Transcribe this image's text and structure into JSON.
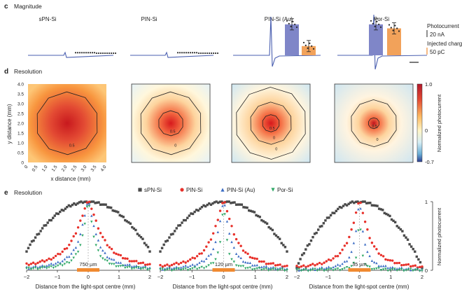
{
  "figure": {
    "panels": {
      "c": {
        "letter": "c",
        "title": "Magnitude"
      },
      "d": {
        "letter": "d",
        "title": "Resolution"
      },
      "e": {
        "letter": "e",
        "title": "Resolution"
      }
    },
    "device_names": [
      "sPN-Si",
      "PIN-Si",
      "PIN-Si (Au)",
      "Por-Si"
    ],
    "colors": {
      "trace": "#4a5fb0",
      "photocurrent_bar": "#7f86c8",
      "charge_bar": "#f2a25a",
      "spn": "#4a4a4a",
      "pin": "#e8302a",
      "pinau": "#3b6cc4",
      "por": "#2fa866",
      "scalebar_orange": "#f08a30"
    },
    "scale_photocurrent": {
      "title": "Photocurrent",
      "value": "20 nA"
    },
    "scale_charge": {
      "title": "Injected charge",
      "value": "50 pC"
    }
  },
  "chart_data": [
    {
      "id": "c",
      "type": "bar",
      "title": "Magnitude",
      "categories": [
        "sPN-Si",
        "PIN-Si",
        "PIN-Si (Au)",
        "Por-Si"
      ],
      "series": [
        {
          "name": "Photocurrent",
          "unit": "nA",
          "values": [
            1.5,
            1.5,
            26,
            26
          ]
        },
        {
          "name": "Injected charge",
          "unit": "pC",
          "values": [
            2,
            2,
            24,
            70
          ]
        }
      ]
    },
    {
      "id": "d",
      "type": "heatmap",
      "title": "Resolution",
      "xlabel": "x distance (mm)",
      "ylabel": "y distance (mm)",
      "xlim": [
        0,
        4
      ],
      "ylim": [
        0,
        4
      ],
      "x_ticks": [
        "0",
        "0.5",
        "1.0",
        "1.5",
        "2.0",
        "2.5",
        "3.0",
        "3.5",
        "4.0"
      ],
      "y_ticks": [
        "0",
        "0.5",
        "1.0",
        "1.5",
        "2.0",
        "2.5",
        "3.0",
        "3.5",
        "4.0"
      ],
      "colorbar": {
        "label": "Normalized photocurrent",
        "min": -0.7,
        "max": 1.0,
        "ticks": [
          "1.0",
          "0",
          "-0.7"
        ]
      },
      "maps": [
        {
          "name": "sPN-Si",
          "contours": [
            "0.5"
          ]
        },
        {
          "name": "PIN-Si",
          "contours": [
            "0.5",
            "0"
          ]
        },
        {
          "name": "PIN-Si (Au)",
          "contours": [
            "0.5",
            "0",
            "0"
          ]
        },
        {
          "name": "Por-Si",
          "contours": [
            "0.5",
            "0"
          ]
        }
      ]
    },
    {
      "id": "e",
      "type": "scatter",
      "title": "Resolution",
      "xlabel": "Distance from the light-spot centre (mm)",
      "ylabel": "Normalized photocurrent",
      "xlim": [
        -2,
        2
      ],
      "ylim": [
        0,
        1
      ],
      "x_ticks": [
        "-2",
        "-1",
        "0",
        "1",
        "2"
      ],
      "y_ticks": [
        "0",
        "1"
      ],
      "legend": [
        "sPN-Si",
        "PIN-Si",
        "PIN-Si (Au)",
        "Por-Si"
      ],
      "subplots": [
        {
          "scalebar": "750 µm",
          "widths": {
            "sPN-Si": 3.0,
            "PIN-Si": 1.0,
            "PIN-Si (Au)": 0.6,
            "Por-Si": 0.4
          }
        },
        {
          "scalebar": "120 µm",
          "widths": {
            "sPN-Si": 3.0,
            "PIN-Si": 0.8,
            "PIN-Si (Au)": 0.45,
            "Por-Si": 0.2
          }
        },
        {
          "scalebar": "35 µm",
          "widths": {
            "sPN-Si": 2.6,
            "PIN-Si": 0.7,
            "PIN-Si (Au)": 0.3,
            "Por-Si": 0.1
          }
        }
      ]
    }
  ]
}
